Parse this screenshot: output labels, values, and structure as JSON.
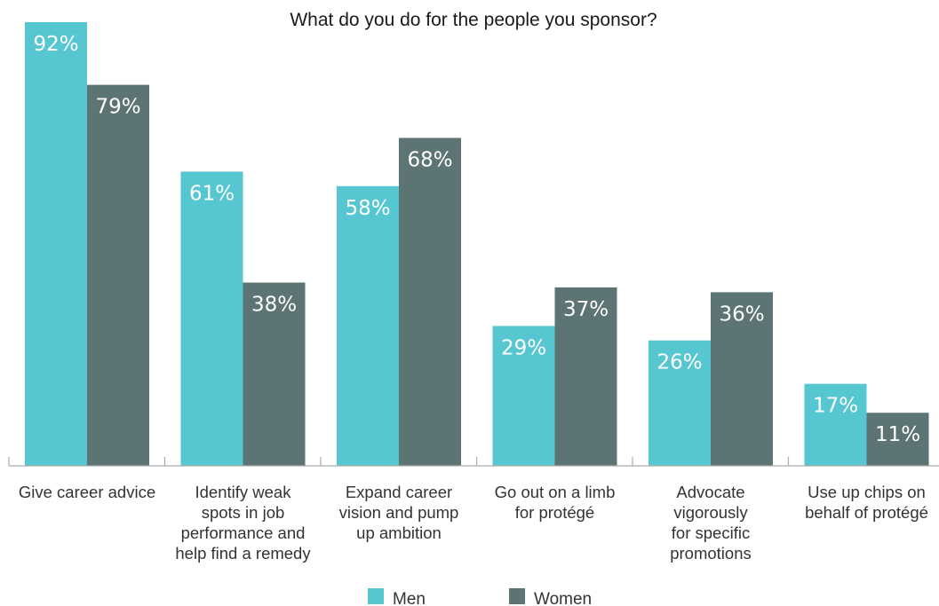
{
  "chart_data": {
    "type": "bar",
    "title": "What do you do for the people you sponsor?",
    "xlabel": "",
    "ylabel": "",
    "ylim": [
      0,
      100
    ],
    "grid": false,
    "legend_position": "bottom-center",
    "categories": [
      [
        "Give career advice"
      ],
      [
        "Identify weak",
        "spots in job",
        "performance and",
        "help find a remedy"
      ],
      [
        "Expand career",
        "vision and pump",
        "up ambition"
      ],
      [
        "Go out on a limb",
        "for protégé"
      ],
      [
        "Advocate",
        "vigorously",
        "for specific",
        "promotions"
      ],
      [
        "Use up chips on",
        "behalf of protégé"
      ]
    ],
    "series": [
      {
        "name": "Men",
        "color": "#56c6d1",
        "values": [
          92,
          61,
          58,
          29,
          26,
          17
        ],
        "labels": [
          "92%",
          "61%",
          "58%",
          "29%",
          "26%",
          "17%"
        ]
      },
      {
        "name": "Women",
        "color": "#5c7474",
        "values": [
          79,
          38,
          68,
          37,
          36,
          11
        ],
        "labels": [
          "79%",
          "38%",
          "68%",
          "37%",
          "36%",
          "11%"
        ]
      }
    ]
  },
  "axis_color": "#aaaaaa"
}
